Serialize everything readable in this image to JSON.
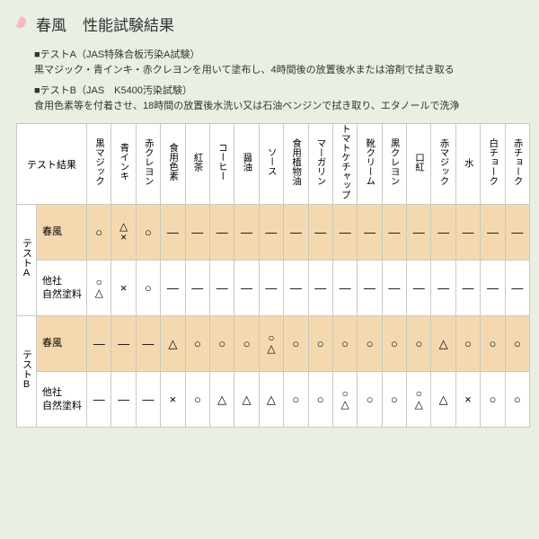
{
  "title1": "春風",
  "title2": "性能試験結果",
  "petal_color": "#f5b8bd",
  "testA": {
    "head": "■テストA（JAS特殊合板汚染A試験）",
    "body": "黒マジック・青インキ・赤クレヨンを用いて塗布し、4時間後の放置後水または溶剤で拭き取る"
  },
  "testB": {
    "head": "■テストB（JAS　K5400汚染試験）",
    "body": "食用色素等を付着させ、18時間の放置後水洗い又は石油ベンジンで拭き取り、エタノールで洗浄"
  },
  "result_label": "テスト結果",
  "columns": [
    "黒マジック",
    "青インキ",
    "赤クレヨン",
    "食用色素",
    "紅茶",
    "コーヒー",
    "醤油",
    "ソース",
    "食用植物油",
    "マーガリン",
    "トマトケチャップ",
    "靴クリーム",
    "黒クレヨン",
    "口紅",
    "赤マジック",
    "水",
    "白チョーク",
    "赤チョーク"
  ],
  "groups": [
    {
      "label": "テストA",
      "rows": [
        {
          "product": "春風",
          "highlight": true,
          "cells": [
            [
              "○"
            ],
            [
              "△",
              "×"
            ],
            [
              "○"
            ],
            [
              "—"
            ],
            [
              "—"
            ],
            [
              "—"
            ],
            [
              "—"
            ],
            [
              "—"
            ],
            [
              "—"
            ],
            [
              "—"
            ],
            [
              "—"
            ],
            [
              "—"
            ],
            [
              "—"
            ],
            [
              "—"
            ],
            [
              "—"
            ],
            [
              "—"
            ],
            [
              "—"
            ],
            [
              "—"
            ]
          ]
        },
        {
          "product": "他社\n自然塗料",
          "highlight": false,
          "cells": [
            [
              "○",
              "△"
            ],
            [
              "×"
            ],
            [
              "○"
            ],
            [
              "—"
            ],
            [
              "—"
            ],
            [
              "—"
            ],
            [
              "—"
            ],
            [
              "—"
            ],
            [
              "—"
            ],
            [
              "—"
            ],
            [
              "—"
            ],
            [
              "—"
            ],
            [
              "—"
            ],
            [
              "—"
            ],
            [
              "—"
            ],
            [
              "—"
            ],
            [
              "—"
            ],
            [
              "—"
            ]
          ]
        }
      ]
    },
    {
      "label": "テストB",
      "rows": [
        {
          "product": "春風",
          "highlight": true,
          "cells": [
            [
              "—"
            ],
            [
              "—"
            ],
            [
              "—"
            ],
            [
              "△"
            ],
            [
              "○"
            ],
            [
              "○"
            ],
            [
              "○"
            ],
            [
              "○",
              "△"
            ],
            [
              "○"
            ],
            [
              "○"
            ],
            [
              "○"
            ],
            [
              "○"
            ],
            [
              "○"
            ],
            [
              "○"
            ],
            [
              "△"
            ],
            [
              "○"
            ],
            [
              "○"
            ],
            [
              "○"
            ]
          ]
        },
        {
          "product": "他社\n自然塗料",
          "highlight": false,
          "cells": [
            [
              "—"
            ],
            [
              "—"
            ],
            [
              "—"
            ],
            [
              "×"
            ],
            [
              "○"
            ],
            [
              "△"
            ],
            [
              "△"
            ],
            [
              "△"
            ],
            [
              "○"
            ],
            [
              "○"
            ],
            [
              "○",
              "△"
            ],
            [
              "○"
            ],
            [
              "○"
            ],
            [
              "○",
              "△"
            ],
            [
              "△"
            ],
            [
              "×"
            ],
            [
              "○"
            ],
            [
              "○"
            ]
          ]
        }
      ]
    }
  ]
}
